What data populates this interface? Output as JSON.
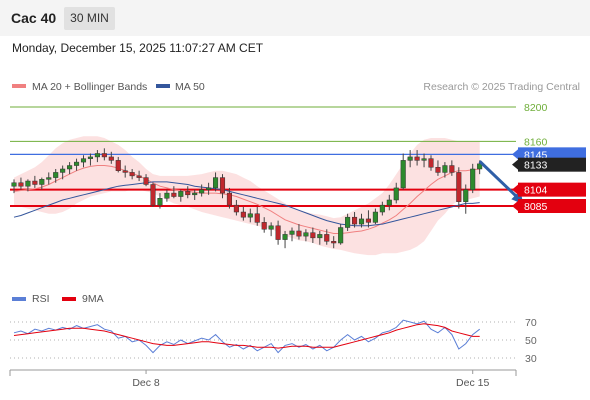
{
  "header": {
    "symbol": "Cac 40",
    "timeframe": "30 MIN",
    "datetime": "Monday, December 15, 2025 11:07:27 AM CET"
  },
  "legend": [
    {
      "label": "MA 20 + Bollinger Bands",
      "color": "#f08080"
    },
    {
      "label": "MA 50",
      "color": "#34569c"
    }
  ],
  "credit": "Research © 2025 Trading Central",
  "chart_data": [
    {
      "type": "candlestick",
      "ylim": [
        8025,
        8215
      ],
      "x_tick_labels": [
        {
          "label": "Dec 8",
          "bar": 19
        },
        {
          "label": "Dec 15",
          "bar": 66
        }
      ],
      "levels": [
        {
          "value": 8200,
          "label": "8200",
          "color": "#6fae3a",
          "style": "line"
        },
        {
          "value": 8160,
          "label": "8160",
          "color": "#6fae3a",
          "style": "line"
        },
        {
          "value": 8145,
          "label": "8145",
          "color": "#3f6ee0",
          "style": "badge"
        },
        {
          "value": 8133,
          "label": "8133",
          "color": "#222222",
          "style": "badge"
        },
        {
          "value": 8104,
          "label": "8104",
          "color": "#e3000f",
          "style": "badge"
        },
        {
          "value": 8085,
          "label": "8085",
          "color": "#e3000f",
          "style": "badge"
        }
      ],
      "projection": {
        "from_bar": 67,
        "from": 8137,
        "to_bar": 73,
        "to": 8087,
        "color": "#2f5fa8"
      },
      "ohlc": [
        [
          8108,
          8116,
          8100,
          8112
        ],
        [
          8112,
          8118,
          8104,
          8108
        ],
        [
          8108,
          8116,
          8102,
          8114
        ],
        [
          8114,
          8120,
          8106,
          8110
        ],
        [
          8110,
          8118,
          8104,
          8116
        ],
        [
          8116,
          8124,
          8110,
          8118
        ],
        [
          8118,
          8128,
          8112,
          8124
        ],
        [
          8124,
          8132,
          8116,
          8128
        ],
        [
          8128,
          8136,
          8122,
          8132
        ],
        [
          8132,
          8140,
          8126,
          8136
        ],
        [
          8136,
          8144,
          8130,
          8140
        ],
        [
          8140,
          8146,
          8132,
          8142
        ],
        [
          8142,
          8150,
          8136,
          8146
        ],
        [
          8146,
          8152,
          8138,
          8142
        ],
        [
          8142,
          8148,
          8134,
          8138
        ],
        [
          8138,
          8142,
          8124,
          8126
        ],
        [
          8126,
          8132,
          8118,
          8124
        ],
        [
          8124,
          8128,
          8116,
          8120
        ],
        [
          8120,
          8126,
          8114,
          8118
        ],
        [
          8118,
          8122,
          8108,
          8110
        ],
        [
          8110,
          8112,
          8084,
          8086
        ],
        [
          8086,
          8100,
          8082,
          8094
        ],
        [
          8094,
          8104,
          8090,
          8100
        ],
        [
          8100,
          8108,
          8094,
          8096
        ],
        [
          8096,
          8104,
          8090,
          8102
        ],
        [
          8102,
          8108,
          8094,
          8098
        ],
        [
          8098,
          8104,
          8092,
          8100
        ],
        [
          8100,
          8110,
          8096,
          8104
        ],
        [
          8104,
          8112,
          8098,
          8106
        ],
        [
          8106,
          8124,
          8102,
          8118
        ],
        [
          8118,
          8122,
          8094,
          8100
        ],
        [
          8100,
          8106,
          8082,
          8086
        ],
        [
          8086,
          8092,
          8074,
          8078
        ],
        [
          8078,
          8084,
          8068,
          8072
        ],
        [
          8072,
          8082,
          8066,
          8076
        ],
        [
          8076,
          8084,
          8062,
          8066
        ],
        [
          8066,
          8072,
          8054,
          8058
        ],
        [
          8058,
          8066,
          8050,
          8062
        ],
        [
          8062,
          8068,
          8040,
          8046
        ],
        [
          8046,
          8056,
          8036,
          8052
        ],
        [
          8052,
          8060,
          8044,
          8056
        ],
        [
          8056,
          8064,
          8046,
          8050
        ],
        [
          8050,
          8058,
          8044,
          8054
        ],
        [
          8054,
          8060,
          8042,
          8048
        ],
        [
          8048,
          8056,
          8040,
          8052
        ],
        [
          8052,
          8058,
          8040,
          8044
        ],
        [
          8044,
          8050,
          8036,
          8042
        ],
        [
          8042,
          8064,
          8040,
          8060
        ],
        [
          8060,
          8076,
          8056,
          8072
        ],
        [
          8072,
          8078,
          8060,
          8064
        ],
        [
          8064,
          8076,
          8060,
          8070
        ],
        [
          8070,
          8080,
          8060,
          8066
        ],
        [
          8066,
          8082,
          8064,
          8078
        ],
        [
          8078,
          8090,
          8074,
          8086
        ],
        [
          8086,
          8098,
          8080,
          8092
        ],
        [
          8092,
          8112,
          8088,
          8106
        ],
        [
          8106,
          8146,
          8104,
          8138
        ],
        [
          8138,
          8150,
          8130,
          8142
        ],
        [
          8142,
          8150,
          8132,
          8138
        ],
        [
          8138,
          8146,
          8130,
          8140
        ],
        [
          8140,
          8144,
          8126,
          8130
        ],
        [
          8130,
          8138,
          8120,
          8124
        ],
        [
          8124,
          8136,
          8118,
          8132
        ],
        [
          8132,
          8138,
          8120,
          8124
        ],
        [
          8124,
          8130,
          8082,
          8090
        ],
        [
          8090,
          8110,
          8076,
          8104
        ],
        [
          8104,
          8134,
          8100,
          8128
        ],
        [
          8128,
          8138,
          8122,
          8134
        ]
      ],
      "ma20": [
        8102,
        8103,
        8104,
        8105,
        8107,
        8110,
        8114,
        8118,
        8122,
        8126,
        8129,
        8131,
        8132,
        8132,
        8131,
        8129,
        8126,
        8123,
        8120,
        8116,
        8112,
        8108,
        8106,
        8104,
        8103,
        8102,
        8101,
        8100,
        8100,
        8100,
        8099,
        8098,
        8096,
        8093,
        8090,
        8087,
        8083,
        8079,
        8074,
        8069,
        8066,
        8063,
        8061,
        8059,
        8057,
        8055,
        8053,
        8053,
        8054,
        8055,
        8056,
        8058,
        8061,
        8065,
        8069,
        8074,
        8081,
        8088,
        8096,
        8103,
        8110,
        8116,
        8120,
        8124,
        8126,
        8126,
        8127,
        8128
      ],
      "bb_upper": [
        8118,
        8122,
        8126,
        8130,
        8136,
        8144,
        8152,
        8158,
        8162,
        8164,
        8166,
        8166,
        8166,
        8164,
        8160,
        8156,
        8150,
        8142,
        8136,
        8128,
        8122,
        8120,
        8120,
        8120,
        8120,
        8120,
        8121,
        8122,
        8124,
        8126,
        8126,
        8124,
        8122,
        8118,
        8114,
        8108,
        8103,
        8098,
        8093,
        8088,
        8084,
        8081,
        8078,
        8076,
        8075,
        8073,
        8071,
        8072,
        8076,
        8080,
        8084,
        8088,
        8094,
        8100,
        8110,
        8122,
        8134,
        8146,
        8156,
        8162,
        8164,
        8164,
        8164,
        8162,
        8160,
        8160,
        8160,
        8160
      ],
      "bb_lower": [
        8086,
        8084,
        8082,
        8080,
        8078,
        8076,
        8076,
        8078,
        8082,
        8088,
        8092,
        8096,
        8098,
        8100,
        8102,
        8102,
        8102,
        8104,
        8104,
        8102,
        8100,
        8096,
        8092,
        8088,
        8086,
        8084,
        8081,
        8078,
        8076,
        8074,
        8072,
        8070,
        8068,
        8066,
        8064,
        8062,
        8060,
        8058,
        8055,
        8050,
        8048,
        8045,
        8044,
        8042,
        8039,
        8037,
        8035,
        8034,
        8032,
        8030,
        8029,
        8028,
        8028,
        8030,
        8030,
        8030,
        8032,
        8034,
        8038,
        8044,
        8056,
        8068,
        8076,
        8086,
        8092,
        8092,
        8094,
        8096
      ],
      "ma50": [
        8072,
        8074,
        8077,
        8080,
        8083,
        8086,
        8089,
        8092,
        8094,
        8096,
        8098,
        8100,
        8102,
        8104,
        8106,
        8108,
        8109,
        8110,
        8111,
        8112,
        8113,
        8113,
        8113,
        8112,
        8111,
        8110,
        8108,
        8107,
        8106,
        8105,
        8104,
        8102,
        8100,
        8098,
        8096,
        8094,
        8092,
        8090,
        8088,
        8086,
        8083,
        8080,
        8077,
        8074,
        8071,
        8068,
        8066,
        8064,
        8063,
        8062,
        8062,
        8062,
        8063,
        8064,
        8066,
        8068,
        8070,
        8072,
        8074,
        8076,
        8078,
        8080,
        8082,
        8084,
        8086,
        8088,
        8088,
        8089
      ]
    },
    {
      "type": "line",
      "legend": [
        {
          "label": "RSI",
          "color": "#5b7fd6"
        },
        {
          "label": "9MA",
          "color": "#e3000f"
        }
      ],
      "ylim": [
        20,
        80
      ],
      "y_ticks": [
        70,
        50,
        30
      ],
      "rsi": [
        58,
        60,
        57,
        62,
        60,
        63,
        61,
        64,
        62,
        66,
        63,
        65,
        67,
        62,
        60,
        52,
        54,
        48,
        50,
        44,
        36,
        44,
        48,
        45,
        50,
        46,
        49,
        52,
        50,
        56,
        48,
        42,
        45,
        40,
        44,
        38,
        42,
        46,
        36,
        44,
        46,
        42,
        45,
        40,
        44,
        38,
        42,
        50,
        56,
        50,
        54,
        48,
        52,
        58,
        60,
        64,
        72,
        70,
        68,
        71,
        62,
        58,
        64,
        56,
        40,
        46,
        56,
        62
      ],
      "ma9": [
        55,
        56,
        57,
        58,
        59,
        60,
        61,
        62,
        63,
        63,
        63,
        62,
        61,
        60,
        58,
        56,
        54,
        52,
        50,
        48,
        46,
        45,
        44,
        44,
        45,
        46,
        47,
        48,
        48,
        47,
        46,
        45,
        44,
        44,
        43,
        42,
        42,
        42,
        41,
        42,
        43,
        43,
        43,
        42,
        42,
        42,
        42,
        44,
        46,
        48,
        50,
        52,
        54,
        56,
        58,
        61,
        63,
        65,
        67,
        68,
        67,
        66,
        64,
        60,
        58,
        56,
        54,
        54
      ]
    }
  ]
}
